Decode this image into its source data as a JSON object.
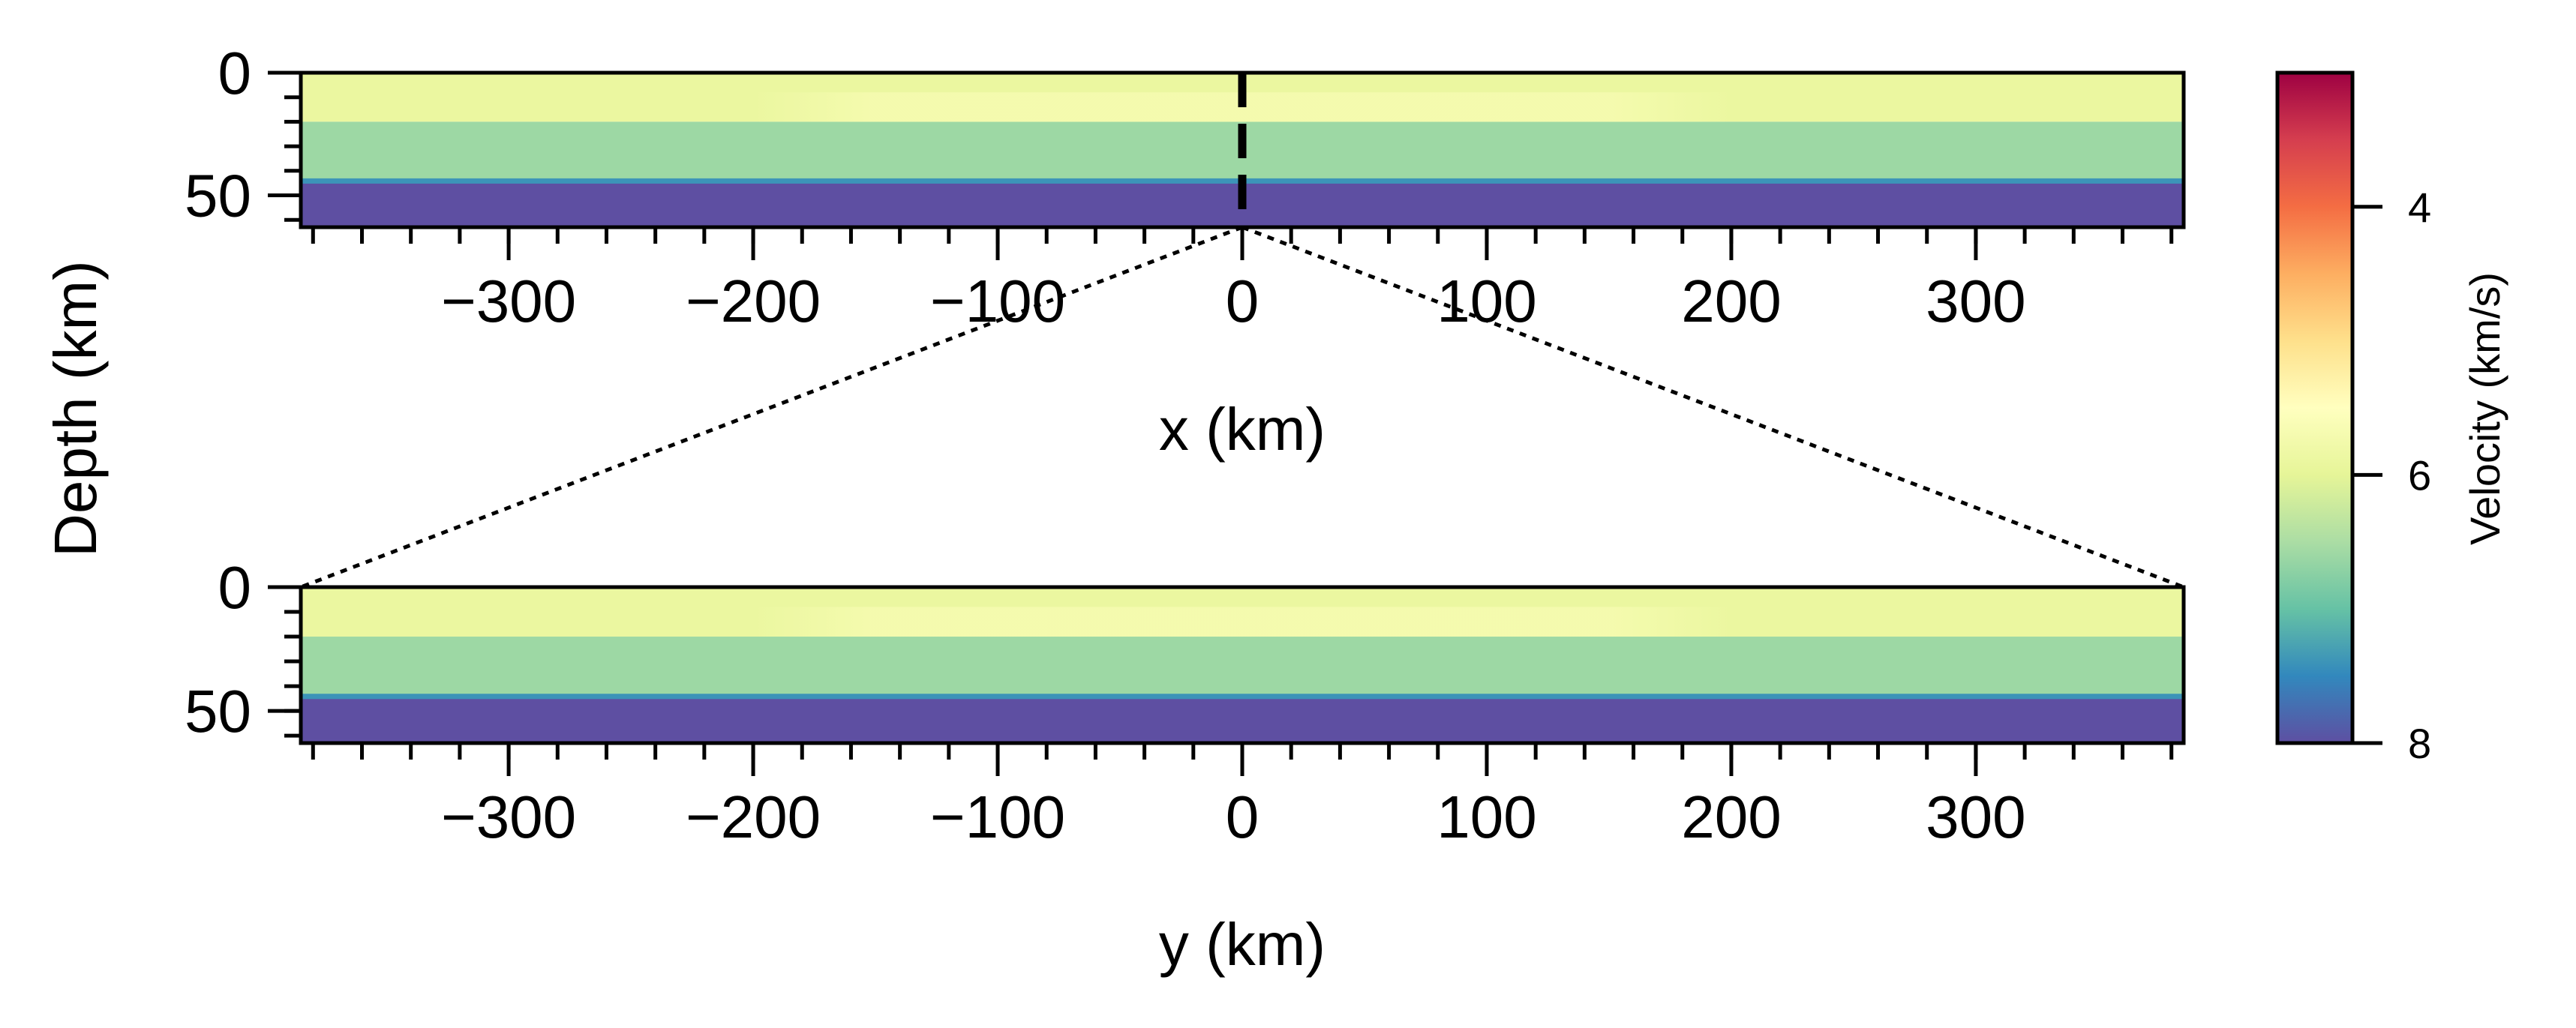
{
  "chart_data": [
    {
      "type": "heatmap",
      "panel": "top",
      "xlabel": "x (km)",
      "ylabel": "Depth (km)",
      "xlim": [
        -385,
        385
      ],
      "ylim": [
        63,
        0
      ],
      "x_ticks": [
        -300,
        -200,
        -100,
        0,
        100,
        200,
        300
      ],
      "x_tick_labels": [
        "−300",
        "−200",
        "−100",
        "0",
        "100",
        "200",
        "300"
      ],
      "y_ticks": [
        0,
        50
      ],
      "y_tick_labels": [
        "0",
        "50"
      ],
      "layers": [
        {
          "top_km": 0,
          "bottom_km": 20,
          "velocity_km_s": 5.9
        },
        {
          "top_km": 20,
          "bottom_km": 44,
          "velocity_km_s": 6.6
        },
        {
          "top_km": 44,
          "bottom_km": 63,
          "velocity_km_s": 8.0
        }
      ],
      "lateral_anomaly": {
        "x_from_km": -200,
        "x_to_km": 200,
        "depth_from_km": 8,
        "depth_to_km": 20,
        "velocity_km_s": 5.7
      },
      "section_marker_x_km": 0
    },
    {
      "type": "heatmap",
      "panel": "bottom",
      "xlabel": "y (km)",
      "ylabel": "Depth (km)",
      "xlim": [
        -385,
        385
      ],
      "ylim": [
        63,
        0
      ],
      "x_ticks": [
        -300,
        -200,
        -100,
        0,
        100,
        200,
        300
      ],
      "x_tick_labels": [
        "−300",
        "−200",
        "−100",
        "0",
        "100",
        "200",
        "300"
      ],
      "y_ticks": [
        0,
        50
      ],
      "y_tick_labels": [
        "0",
        "50"
      ],
      "layers": [
        {
          "top_km": 0,
          "bottom_km": 20,
          "velocity_km_s": 5.9
        },
        {
          "top_km": 20,
          "bottom_km": 44,
          "velocity_km_s": 6.6
        },
        {
          "top_km": 44,
          "bottom_km": 63,
          "velocity_km_s": 8.0
        }
      ],
      "lateral_anomaly": {
        "x_from_km": -200,
        "x_to_km": 200,
        "depth_from_km": 8,
        "depth_to_km": 20,
        "velocity_km_s": 5.7
      }
    }
  ],
  "colorbar": {
    "label": "Velocity (km/s)",
    "range": [
      3,
      8
    ],
    "reversed": true,
    "colormap": "Spectral",
    "ticks": [
      4,
      6,
      8
    ],
    "tick_labels": [
      "4",
      "6",
      "8"
    ]
  },
  "shared_ylabel": "Depth (km)"
}
